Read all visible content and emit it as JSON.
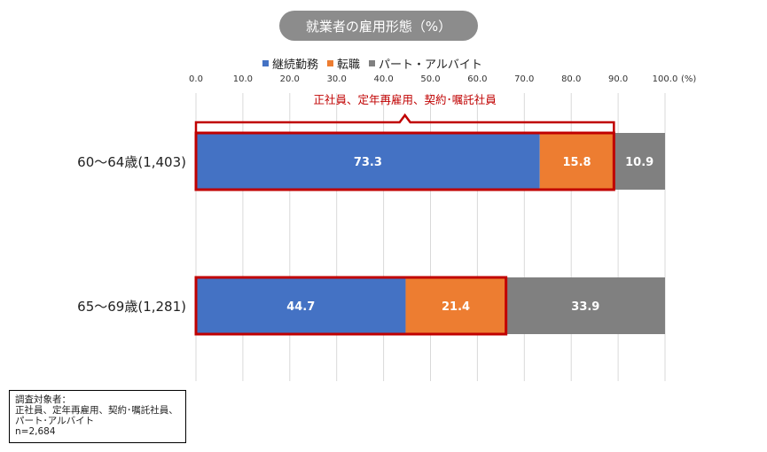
{
  "chart_data": {
    "type": "bar",
    "orientation": "horizontal",
    "stacked": true,
    "title": "就業者の雇用形態（%）",
    "categories": [
      "60～64歳(1,403)",
      "65～69歳(1,281)"
    ],
    "series": [
      {
        "name": "継続勤務",
        "values": [
          73.3,
          44.7
        ],
        "color": "#4472c4"
      },
      {
        "name": "転職",
        "values": [
          15.8,
          21.4
        ],
        "color": "#ed7d31"
      },
      {
        "name": "パート・アルバイト",
        "values": [
          10.9,
          33.9
        ],
        "color": "#808080"
      }
    ],
    "xlim": [
      0,
      100
    ],
    "x_ticks": [
      "0.0",
      "10.0",
      "20.0",
      "30.0",
      "40.0",
      "50.0",
      "60.0",
      "70.0",
      "80.0",
      "90.0",
      "100.0"
    ],
    "x_unit": "(%)",
    "grid": true,
    "legend": "top",
    "annotation": "正社員、定年再雇用、契約･嘱託社員",
    "highlight_color": "#c00000"
  },
  "note": {
    "lines": [
      "調査対象者：",
      "正社員、定年再雇用、契約･嘱託社員、",
      "パート･アルバイト",
      "n=2,684"
    ]
  }
}
